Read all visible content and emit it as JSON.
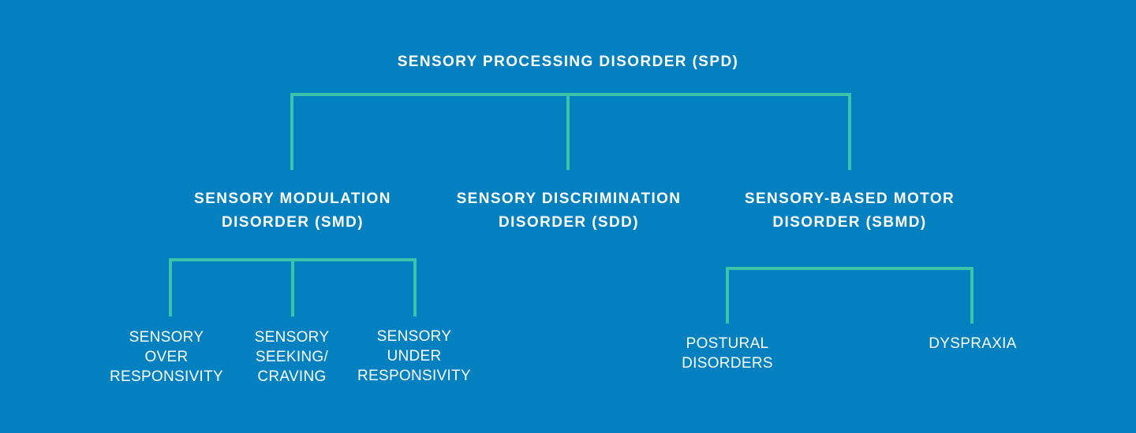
{
  "colors": {
    "background": "#0380c0",
    "connector": "#3dc3aa",
    "text": "#ffffff"
  },
  "root": {
    "label": "SENSORY PROCESSING DISORDER (SPD)"
  },
  "categories": [
    {
      "lines": [
        "SENSORY MODULATION",
        "DISORDER (SMD)"
      ]
    },
    {
      "lines": [
        "SENSORY DISCRIMINATION",
        "DISORDER (SDD)"
      ]
    },
    {
      "lines": [
        "SENSORY-BASED MOTOR",
        "DISORDER (SBMD)"
      ]
    }
  ],
  "modulation_subtypes": [
    {
      "lines": [
        "SENSORY",
        "OVER",
        "RESPONSIVITY"
      ]
    },
    {
      "lines": [
        "SENSORY",
        "SEEKING/",
        "CRAVING"
      ]
    },
    {
      "lines": [
        "SENSORY",
        "UNDER",
        "RESPONSIVITY"
      ]
    }
  ],
  "motor_subtypes": [
    {
      "lines": [
        "POSTURAL",
        "DISORDERS"
      ]
    },
    {
      "lines": [
        "DYSPRAXIA"
      ]
    }
  ]
}
